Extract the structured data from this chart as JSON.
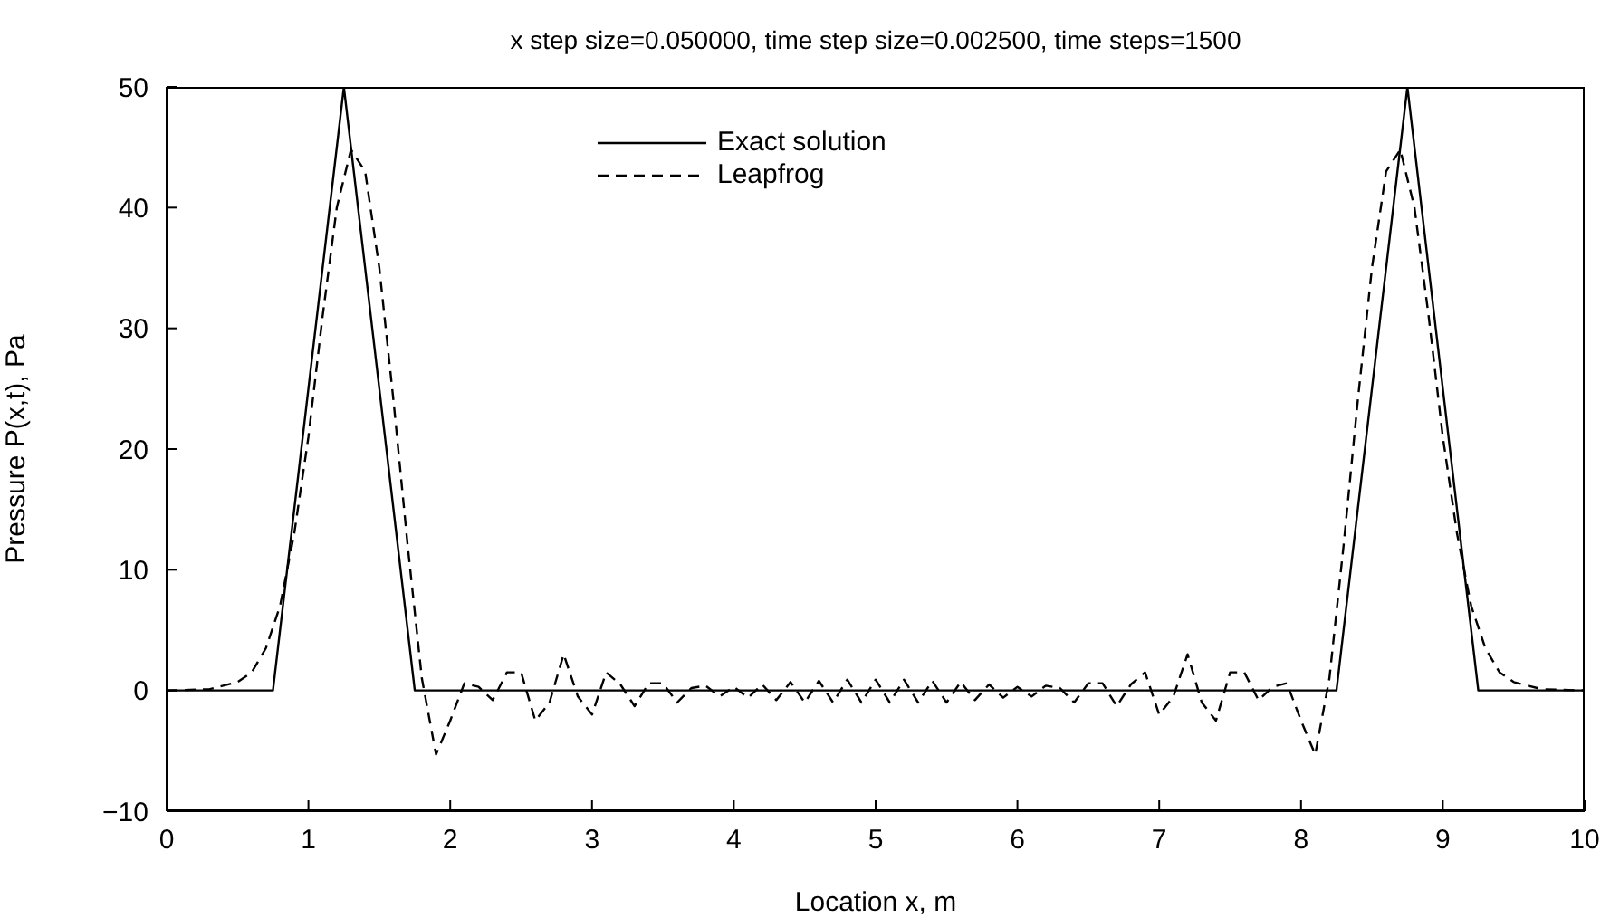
{
  "chart_data": {
    "type": "line",
    "title": "x step size=0.050000, time step size=0.002500, time steps=1500",
    "xlabel": "Location x, m",
    "ylabel": "Pressure P(x,t), Pa",
    "xlim": [
      0,
      10
    ],
    "xticks": [
      0,
      1,
      2,
      3,
      4,
      5,
      6,
      7,
      8,
      9,
      10
    ],
    "ylim": [
      -10,
      50
    ],
    "yticks": [
      {
        "value": -10,
        "label": "−10"
      },
      0,
      10,
      20,
      30,
      40,
      50
    ],
    "grid": false,
    "legend": "top",
    "marker": "none",
    "series": [
      {
        "name": "Exact solution",
        "color": "#000000",
        "line_style": "solid",
        "x": [
          0,
          0.75,
          1.25,
          1.75,
          8.25,
          8.75,
          9.25,
          10
        ],
        "values": [
          0,
          0,
          50,
          0,
          0,
          50,
          0,
          0
        ]
      },
      {
        "name": "Leapfrog",
        "color": "#000000",
        "line_style": "dashed",
        "x": [
          0,
          0.3,
          0.5,
          0.6,
          0.7,
          0.8,
          0.9,
          1.0,
          1.1,
          1.2,
          1.3,
          1.4,
          1.5,
          1.6,
          1.7,
          1.8,
          1.9,
          2.0,
          2.1,
          2.2,
          2.3,
          2.4,
          2.5,
          2.6,
          2.7,
          2.8,
          2.9,
          3.0,
          3.1,
          3.2,
          3.3,
          3.4,
          3.5,
          3.6,
          3.7,
          3.8,
          3.9,
          4.0,
          4.1,
          4.2,
          4.3,
          4.4,
          4.5,
          4.6,
          4.7,
          4.8,
          4.9,
          5.0,
          5.1,
          5.2,
          5.3,
          5.4,
          5.5,
          5.6,
          5.7,
          5.8,
          5.9,
          6.0,
          6.1,
          6.2,
          6.3,
          6.4,
          6.5,
          6.6,
          6.7,
          6.8,
          6.9,
          7.0,
          7.1,
          7.2,
          7.3,
          7.4,
          7.5,
          7.6,
          7.7,
          7.8,
          7.9,
          8.0,
          8.1,
          8.2,
          8.3,
          8.4,
          8.5,
          8.6,
          8.7,
          8.8,
          8.9,
          9.0,
          9.1,
          9.2,
          9.3,
          9.4,
          9.5,
          9.7,
          10
        ],
        "values": [
          0,
          0.1,
          0.7,
          1.5,
          3.5,
          7,
          13,
          21,
          31,
          40,
          44.8,
          43,
          35,
          24,
          12,
          1,
          -5.3,
          -2.5,
          0.6,
          0.3,
          -0.8,
          1.5,
          1.5,
          -2.5,
          -1,
          3,
          -0.5,
          -2,
          1.5,
          0.5,
          -1.3,
          0.6,
          0.6,
          -1,
          0.2,
          0.4,
          -0.5,
          0.3,
          -0.6,
          0.5,
          -0.8,
          0.7,
          -1,
          0.8,
          -1,
          0.9,
          -1,
          0.9,
          -1,
          0.9,
          -1,
          0.8,
          -1,
          0.7,
          -0.8,
          0.5,
          -0.6,
          0.3,
          -0.5,
          0.4,
          0.2,
          -1,
          0.6,
          0.6,
          -1.3,
          0.5,
          1.5,
          -2,
          -0.5,
          3,
          -1,
          -2.5,
          1.5,
          1.5,
          -0.8,
          0.3,
          0.6,
          -2.5,
          -5.3,
          1,
          12,
          24,
          35,
          43,
          44.8,
          40,
          31,
          21,
          13,
          7,
          3.5,
          1.5,
          0.7,
          0.1,
          0
        ]
      }
    ]
  }
}
